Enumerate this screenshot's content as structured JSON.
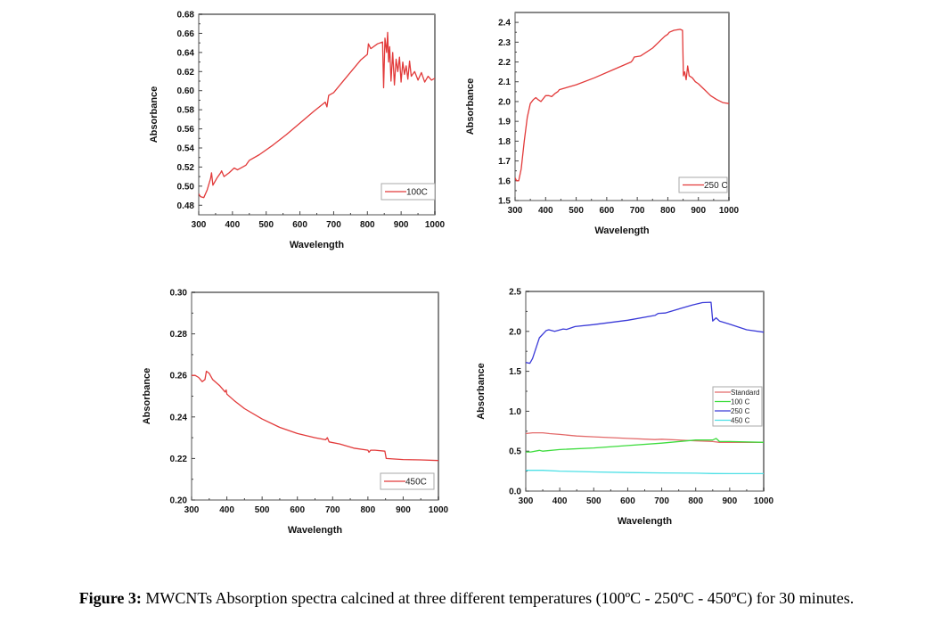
{
  "caption": {
    "label": "Figure 3:",
    "text": " MWCNTs Absorption spectra calcined at three different temperatures (100ºC - 250ºC - 450ºC) for 30 minutes."
  },
  "chart_data": [
    {
      "id": "chart-100c",
      "type": "line",
      "title": "",
      "xlabel": "Wavelength",
      "ylabel": "Absorbance",
      "xlim": [
        300,
        1000
      ],
      "ylim": [
        0.47,
        0.68
      ],
      "xticks": [
        300,
        400,
        500,
        600,
        700,
        800,
        900,
        1000
      ],
      "yticks": [
        0.48,
        0.5,
        0.52,
        0.54,
        0.56,
        0.58,
        0.6,
        0.62,
        0.64,
        0.66,
        0.68
      ],
      "ytick_decimals": 2,
      "grid": false,
      "legend": {
        "position": "bottom-right",
        "entries": [
          "100C"
        ]
      },
      "series": [
        {
          "name": "100C",
          "color": "#e23a3a",
          "x": [
            300,
            305,
            315,
            325,
            335,
            338,
            342,
            355,
            365,
            368,
            375,
            390,
            405,
            415,
            430,
            440,
            450,
            480,
            520,
            560,
            600,
            640,
            675,
            680,
            685,
            700,
            740,
            780,
            800,
            803,
            810,
            830,
            845,
            848,
            852,
            857,
            860,
            863,
            866,
            870,
            875,
            880,
            885,
            890,
            895,
            900,
            905,
            910,
            915,
            920,
            925,
            930,
            940,
            950,
            960,
            970,
            980,
            990,
            1000
          ],
          "y": [
            0.492,
            0.489,
            0.488,
            0.496,
            0.508,
            0.514,
            0.501,
            0.509,
            0.514,
            0.516,
            0.51,
            0.514,
            0.519,
            0.517,
            0.52,
            0.522,
            0.527,
            0.533,
            0.543,
            0.554,
            0.566,
            0.578,
            0.588,
            0.583,
            0.595,
            0.598,
            0.615,
            0.632,
            0.638,
            0.649,
            0.644,
            0.649,
            0.651,
            0.603,
            0.655,
            0.64,
            0.661,
            0.63,
            0.646,
            0.61,
            0.64,
            0.606,
            0.633,
            0.62,
            0.635,
            0.609,
            0.63,
            0.617,
            0.626,
            0.612,
            0.631,
            0.615,
            0.62,
            0.611,
            0.619,
            0.609,
            0.615,
            0.611,
            0.613
          ]
        }
      ]
    },
    {
      "id": "chart-250c",
      "type": "line",
      "title": "",
      "xlabel": "Wavelength",
      "ylabel": "Absorbance",
      "xlim": [
        300,
        1000
      ],
      "ylim": [
        1.5,
        2.45
      ],
      "xticks": [
        300,
        400,
        500,
        600,
        700,
        800,
        900,
        1000
      ],
      "yticks": [
        1.5,
        1.6,
        1.7,
        1.8,
        1.9,
        2.0,
        2.1,
        2.2,
        2.3,
        2.4
      ],
      "ytick_decimals": 1,
      "grid": false,
      "legend": {
        "position": "bottom-right",
        "entries": [
          "250 C"
        ]
      },
      "series": [
        {
          "name": "250 C",
          "color": "#e23a3a",
          "x": [
            300,
            305,
            312,
            320,
            330,
            340,
            350,
            360,
            368,
            375,
            385,
            400,
            410,
            420,
            430,
            440,
            445,
            500,
            560,
            620,
            680,
            685,
            690,
            710,
            750,
            790,
            800,
            805,
            820,
            840,
            848,
            851,
            855,
            860,
            865,
            870,
            880,
            890,
            900,
            920,
            940,
            960,
            980,
            1000
          ],
          "y": [
            1.615,
            1.6,
            1.6,
            1.66,
            1.8,
            1.92,
            1.99,
            2.01,
            2.02,
            2.01,
            2.0,
            2.03,
            2.03,
            2.025,
            2.04,
            2.05,
            2.06,
            2.085,
            2.12,
            2.16,
            2.2,
            2.21,
            2.225,
            2.23,
            2.27,
            2.33,
            2.34,
            2.35,
            2.36,
            2.365,
            2.36,
            2.13,
            2.15,
            2.11,
            2.18,
            2.13,
            2.12,
            2.1,
            2.09,
            2.06,
            2.03,
            2.01,
            1.995,
            1.99
          ]
        }
      ]
    },
    {
      "id": "chart-450c",
      "type": "line",
      "title": "",
      "xlabel": "Wavelength",
      "ylabel": "Absorbance",
      "xlim": [
        300,
        1000
      ],
      "ylim": [
        0.2,
        0.3
      ],
      "xticks": [
        300,
        400,
        500,
        600,
        700,
        800,
        900,
        1000
      ],
      "yticks": [
        0.2,
        0.22,
        0.24,
        0.26,
        0.28,
        0.3
      ],
      "ytick_decimals": 2,
      "grid": false,
      "legend": {
        "position": "bottom-right",
        "entries": [
          "450C"
        ]
      },
      "series": [
        {
          "name": "450C",
          "color": "#e23a3a",
          "x": [
            300,
            310,
            320,
            330,
            338,
            342,
            350,
            360,
            380,
            395,
            398,
            400,
            420,
            450,
            500,
            550,
            600,
            650,
            680,
            685,
            690,
            720,
            760,
            800,
            803,
            808,
            820,
            848,
            852,
            870,
            900,
            950,
            1000
          ],
          "y": [
            0.26,
            0.26,
            0.259,
            0.257,
            0.258,
            0.262,
            0.261,
            0.258,
            0.255,
            0.252,
            0.253,
            0.251,
            0.248,
            0.244,
            0.239,
            0.235,
            0.232,
            0.23,
            0.229,
            0.23,
            0.228,
            0.227,
            0.225,
            0.224,
            0.223,
            0.224,
            0.224,
            0.2235,
            0.22,
            0.2198,
            0.2195,
            0.2193,
            0.219
          ]
        }
      ]
    },
    {
      "id": "chart-combined",
      "type": "line",
      "title": "",
      "xlabel": "Wavelength",
      "ylabel": "Absorbance",
      "xlim": [
        300,
        1000
      ],
      "ylim": [
        0.0,
        2.5
      ],
      "xticks": [
        300,
        400,
        500,
        600,
        700,
        800,
        900,
        1000
      ],
      "yticks": [
        0.0,
        0.5,
        1.0,
        1.5,
        2.0,
        2.5
      ],
      "ytick_decimals": 1,
      "grid": false,
      "legend": {
        "position": "right",
        "entries": [
          "Standard",
          "100 C",
          "250 C",
          "450 C"
        ]
      },
      "series": [
        {
          "name": "Standard",
          "color": "#e36a6a",
          "x": [
            300,
            320,
            350,
            370,
            400,
            450,
            500,
            600,
            680,
            700,
            800,
            850,
            870,
            900,
            1000
          ],
          "y": [
            0.72,
            0.73,
            0.73,
            0.72,
            0.71,
            0.69,
            0.68,
            0.66,
            0.645,
            0.65,
            0.63,
            0.62,
            0.61,
            0.61,
            0.61
          ]
        },
        {
          "name": "100 C",
          "color": "#3ddc3d",
          "x": [
            300,
            315,
            340,
            350,
            400,
            500,
            600,
            700,
            800,
            850,
            860,
            870,
            900,
            1000
          ],
          "y": [
            0.49,
            0.49,
            0.51,
            0.5,
            0.52,
            0.54,
            0.57,
            0.6,
            0.64,
            0.64,
            0.66,
            0.62,
            0.62,
            0.61
          ]
        },
        {
          "name": "250 C",
          "color": "#3a3ad8",
          "x": [
            300,
            312,
            320,
            340,
            360,
            368,
            385,
            410,
            420,
            445,
            500,
            600,
            680,
            690,
            710,
            790,
            820,
            845,
            850,
            855,
            860,
            870,
            900,
            950,
            1000
          ],
          "y": [
            1.61,
            1.6,
            1.66,
            1.92,
            2.01,
            2.02,
            2.0,
            2.03,
            2.025,
            2.06,
            2.085,
            2.14,
            2.2,
            2.225,
            2.23,
            2.33,
            2.36,
            2.365,
            2.13,
            2.15,
            2.17,
            2.13,
            2.09,
            2.02,
            1.99
          ]
        },
        {
          "name": "450 C",
          "color": "#4de0e6",
          "x": [
            300,
            350,
            400,
            500,
            600,
            700,
            800,
            850,
            900,
            1000
          ],
          "y": [
            0.26,
            0.26,
            0.25,
            0.24,
            0.232,
            0.228,
            0.224,
            0.22,
            0.219,
            0.219
          ]
        }
      ]
    }
  ]
}
